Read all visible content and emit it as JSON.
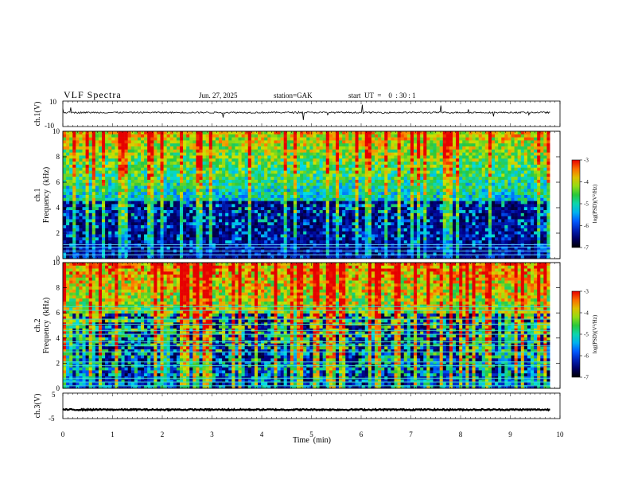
{
  "header": {
    "title": "VLF  Spectra",
    "date": "Jun. 27, 2025",
    "station": "station=GAK",
    "start": "start  UT  =    0  : 30 : 1"
  },
  "chart_data": [
    {
      "id": "ch1-waveform",
      "type": "line",
      "ylabel": "ch.1(V)",
      "ylim": [
        -10,
        10
      ],
      "yticks": [
        "10",
        "-10"
      ],
      "description_level": "trace near +1 V with sparse spikes",
      "baseline": 1
    },
    {
      "id": "ch1-spectrogram",
      "type": "heatmap",
      "ylabel_top": "ch.1",
      "ylabel": "Frequency  (kHz)",
      "ylim": [
        0,
        10
      ],
      "yticks": [
        "0",
        "2",
        "4",
        "6",
        "8",
        "10"
      ],
      "xlim": [
        0,
        10
      ],
      "data_extent_min": 9.8,
      "colorbar": {
        "label": "log(PSD)(V²/Hz)",
        "range": [
          -7,
          -3
        ],
        "ticks": [
          "-3",
          "-4",
          "-5",
          "-6",
          "-7"
        ]
      },
      "lines_khz": [
        0.3,
        0.6,
        0.9,
        1.1
      ]
    },
    {
      "id": "ch2-spectrogram",
      "type": "heatmap",
      "ylabel_top": "ch.2",
      "ylabel": "Frequency  (kHz)",
      "ylim": [
        0,
        10
      ],
      "yticks": [
        "0",
        "2",
        "4",
        "6",
        "8",
        "10"
      ],
      "xlim": [
        0,
        10
      ],
      "data_extent_min": 9.8,
      "colorbar": {
        "label": "log(PSD)(V²/Hz)",
        "range": [
          -7,
          -3
        ],
        "ticks": [
          "-3",
          "-4",
          "-5",
          "-6",
          "-7"
        ]
      },
      "lines_khz": [
        0.2,
        0.5,
        0.8,
        1.8,
        2.1,
        2.9,
        3.4,
        3.7,
        4.3,
        4.6,
        5.1,
        5.5,
        6.2,
        6.5
      ]
    },
    {
      "id": "ch3-waveform",
      "type": "line",
      "ylabel": "ch.3(V)",
      "ylim": [
        -5,
        5
      ],
      "yticks": [
        "5",
        "-5"
      ],
      "baseline": -1.5
    }
  ],
  "xaxis": {
    "label": "Time  (min)",
    "range": [
      0,
      10
    ],
    "ticks": [
      "0",
      "1",
      "2",
      "3",
      "4",
      "5",
      "6",
      "7",
      "8",
      "9",
      "10"
    ]
  }
}
